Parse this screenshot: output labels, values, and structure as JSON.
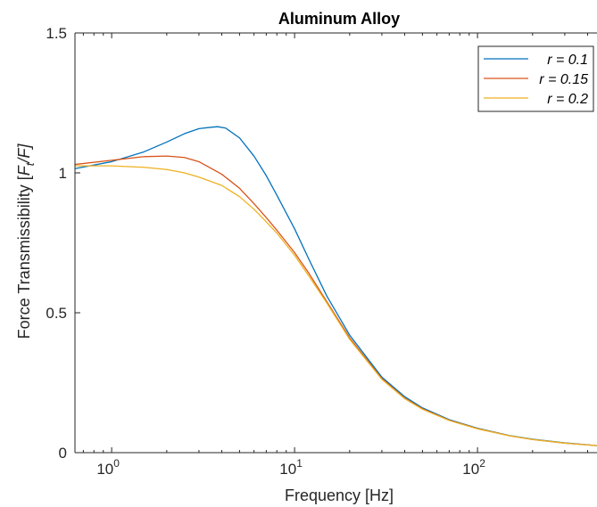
{
  "chart_data": {
    "type": "line",
    "title": "Aluminum Alloy",
    "xlabel": "Frequency [Hz]",
    "ylabel": {
      "prefix": "Force Transmissibility [",
      "f1": "F",
      "sub": "t",
      "rest": "/F]"
    },
    "x_scale": "log",
    "xlim": [
      0.63,
      450
    ],
    "ylim": [
      0,
      1.5
    ],
    "x_ticks": [
      {
        "value": 1,
        "base": "10",
        "exp": "0"
      },
      {
        "value": 10,
        "base": "10",
        "exp": "1"
      },
      {
        "value": 100,
        "base": "10",
        "exp": "2"
      }
    ],
    "y_ticks": [
      {
        "value": 0,
        "label": "0"
      },
      {
        "value": 0.5,
        "label": "0.5"
      },
      {
        "value": 1,
        "label": "1"
      },
      {
        "value": 1.5,
        "label": "1.5"
      }
    ],
    "grid": false,
    "legend_position": "top-right",
    "series": [
      {
        "name": "r = 0.1",
        "color": "#0072BD",
        "x": [
          0.63,
          1.0,
          1.5,
          2.0,
          2.5,
          3.0,
          3.5,
          3.8,
          4.2,
          5.0,
          6.0,
          7.0,
          8.0,
          10.0,
          12.0,
          15.0,
          20.0,
          30.0,
          40.0,
          50.0,
          70.0,
          100.0,
          150.0,
          200.0,
          300.0,
          450.0
        ],
        "y": [
          1.015,
          1.04,
          1.075,
          1.11,
          1.14,
          1.158,
          1.163,
          1.165,
          1.16,
          1.125,
          1.06,
          0.99,
          0.92,
          0.8,
          0.69,
          0.56,
          0.42,
          0.27,
          0.2,
          0.16,
          0.118,
          0.087,
          0.061,
          0.048,
          0.035,
          0.025
        ]
      },
      {
        "name": "r = 0.15",
        "color": "#D95319",
        "x": [
          0.63,
          1.0,
          1.5,
          2.0,
          2.5,
          3.0,
          4.0,
          5.0,
          6.0,
          7.0,
          8.0,
          10.0,
          12.0,
          15.0,
          20.0,
          30.0,
          40.0,
          50.0,
          70.0,
          100.0,
          150.0,
          200.0,
          300.0,
          450.0
        ],
        "y": [
          1.03,
          1.045,
          1.058,
          1.06,
          1.055,
          1.04,
          0.995,
          0.945,
          0.89,
          0.84,
          0.795,
          0.715,
          0.64,
          0.54,
          0.41,
          0.265,
          0.195,
          0.157,
          0.116,
          0.086,
          0.06,
          0.047,
          0.034,
          0.025
        ]
      },
      {
        "name": "r = 0.2",
        "color": "#EDB120",
        "x": [
          0.63,
          1.0,
          1.5,
          2.0,
          2.5,
          3.0,
          4.0,
          5.0,
          6.0,
          7.0,
          8.0,
          10.0,
          12.0,
          15.0,
          20.0,
          30.0,
          40.0,
          50.0,
          70.0,
          100.0,
          150.0,
          200.0,
          300.0,
          450.0
        ],
        "y": [
          1.025,
          1.025,
          1.02,
          1.012,
          1.0,
          0.985,
          0.955,
          0.915,
          0.87,
          0.825,
          0.785,
          0.705,
          0.63,
          0.535,
          0.405,
          0.262,
          0.193,
          0.155,
          0.115,
          0.085,
          0.06,
          0.047,
          0.034,
          0.025
        ]
      }
    ]
  }
}
